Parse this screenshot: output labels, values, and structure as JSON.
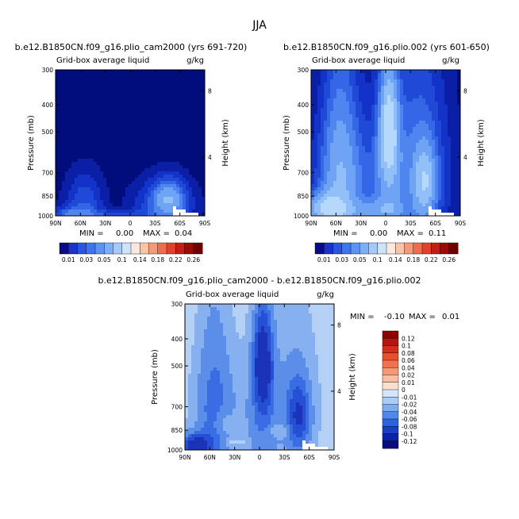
{
  "season": "JJA",
  "chart_data": [
    {
      "type": "heatmap",
      "title": "b.e12.B1850CN.f09_g16.plio_cam2000 (yrs 691-720)",
      "variable": "Grid-box average liquid",
      "units": "g/kg",
      "xlabel": "",
      "ylabel": "Pressure (mb)",
      "y2label": "Height (km)",
      "x_ticks": [
        "90N",
        "60N",
        "30N",
        "0",
        "30S",
        "60S",
        "90S"
      ],
      "y_ticks": [
        300,
        400,
        500,
        700,
        850,
        1000
      ],
      "y2_ticks": [
        8,
        4
      ],
      "min_label": "MIN =",
      "min_value": "0.00",
      "max_label": "MAX =",
      "max_value": "0.04",
      "blobs": [
        {
          "lat": -47,
          "p": 870,
          "sx": 12,
          "sy": 85,
          "a": 0.035
        },
        {
          "lat": -40,
          "p": 910,
          "sx": 22,
          "sy": 110,
          "a": 0.018
        },
        {
          "lat": 55,
          "p": 900,
          "sx": 14,
          "sy": 130,
          "a": 0.016
        },
        {
          "lat": 70,
          "p": 985,
          "sx": 16,
          "sy": 40,
          "a": 0.018
        },
        {
          "lat": 20,
          "p": 985,
          "sx": 35,
          "sy": 25,
          "a": 0.012
        }
      ]
    },
    {
      "type": "heatmap",
      "title": "b.e12.B1850CN.f09_g16.plio.002 (yrs 601-650)",
      "variable": "Grid-box average liquid",
      "units": "g/kg",
      "xlabel": "",
      "ylabel": "Pressure (mb)",
      "y2label": "Height (km)",
      "x_ticks": [
        "90N",
        "60N",
        "30N",
        "0",
        "30S",
        "60S",
        "90S"
      ],
      "y_ticks": [
        300,
        400,
        500,
        700,
        850,
        1000
      ],
      "y2_ticks": [
        8,
        4
      ],
      "min_label": "MIN =",
      "min_value": "0.00",
      "max_label": "MAX =",
      "max_value": "0.11",
      "blobs": [
        {
          "lat": -4,
          "p": 490,
          "sx": 7,
          "sy": 130,
          "a": 0.07
        },
        {
          "lat": -4,
          "p": 720,
          "sx": 11,
          "sy": 300,
          "a": 0.03
        },
        {
          "lat": -47,
          "p": 760,
          "sx": 9,
          "sy": 140,
          "a": 0.05
        },
        {
          "lat": -40,
          "p": 700,
          "sx": 22,
          "sy": 330,
          "a": 0.025
        },
        {
          "lat": 55,
          "p": 700,
          "sx": 14,
          "sy": 330,
          "a": 0.035
        },
        {
          "lat": 72,
          "p": 940,
          "sx": 14,
          "sy": 80,
          "a": 0.06
        },
        {
          "lat": 40,
          "p": 760,
          "sx": 32,
          "sy": 240,
          "a": 0.018
        },
        {
          "lat": 20,
          "p": 960,
          "sx": 35,
          "sy": 60,
          "a": 0.025
        }
      ]
    },
    {
      "type": "heatmap",
      "title": "b.e12.B1850CN.f09_g16.plio_cam2000 - b.e12.B1850CN.f09_g16.plio.002",
      "variable": "Grid-box average liquid",
      "units": "g/kg",
      "xlabel": "",
      "ylabel": "Pressure (mb)",
      "y2label": "Height (km)",
      "x_ticks": [
        "90N",
        "60N",
        "30N",
        "0",
        "30S",
        "60S",
        "90S"
      ],
      "y_ticks": [
        300,
        400,
        500,
        700,
        850,
        1000
      ],
      "y2_ticks": [
        8,
        4
      ],
      "min_label": "MIN =",
      "min_value": "-0.10",
      "max_label": "MAX =",
      "max_value": "0.01",
      "blobs": [
        {
          "lat": -4,
          "p": 490,
          "sx": 7,
          "sy": 120,
          "a": -0.06
        },
        {
          "lat": -4,
          "p": 720,
          "sx": 11,
          "sy": 300,
          "a": -0.02
        },
        {
          "lat": -47,
          "p": 760,
          "sx": 9,
          "sy": 140,
          "a": -0.04
        },
        {
          "lat": -40,
          "p": 700,
          "sx": 22,
          "sy": 330,
          "a": -0.012
        },
        {
          "lat": 55,
          "p": 700,
          "sx": 14,
          "sy": 330,
          "a": -0.02
        },
        {
          "lat": 76,
          "p": 965,
          "sx": 12,
          "sy": 60,
          "a": -0.06
        },
        {
          "lat": 40,
          "p": 760,
          "sx": 32,
          "sy": 240,
          "a": -0.008
        },
        {
          "lat": 44,
          "p": 800,
          "sx": 8,
          "sy": 60,
          "a": 0.012
        },
        {
          "lat": -25,
          "p": 850,
          "sx": 14,
          "sy": 35,
          "a": 0.01
        },
        {
          "lat": 30,
          "p": 935,
          "sx": 10,
          "sy": 20,
          "a": 0.008
        }
      ]
    }
  ],
  "colorbars": [
    {
      "orientation": "horizontal",
      "labels": [
        "0.01",
        "0.03",
        "0.05",
        "0.1",
        "0.14",
        "0.18",
        "0.22",
        "0.26"
      ],
      "colors": [
        "#0a0a8a",
        "#1a33cc",
        "#2a55e0",
        "#3d74f0",
        "#5a92f5",
        "#7daff8",
        "#a5cafa",
        "#cfe2fc",
        "#fbe7dc",
        "#f9c3a8",
        "#f59a78",
        "#ef6d4c",
        "#e3412c",
        "#c51d16",
        "#9c0b08",
        "#6e0000"
      ]
    },
    {
      "orientation": "vertical",
      "labels": [
        "0.12",
        "0.1",
        "0.08",
        "0.06",
        "0.04",
        "0.02",
        "0.01",
        "0",
        "-0.01",
        "-0.02",
        "-0.04",
        "-0.06",
        "-0.08",
        "-0.1",
        "-0.12"
      ],
      "colors": [
        "#8c0000",
        "#b4170d",
        "#d12f1c",
        "#e8502f",
        "#f27250",
        "#f59878",
        "#f8bda3",
        "#fbe0d0",
        "#d4e6fc",
        "#abcbf8",
        "#7eacf3",
        "#5089ec",
        "#2c64de",
        "#1a3fc4",
        "#0c22a4",
        "#0a0a78"
      ]
    }
  ]
}
